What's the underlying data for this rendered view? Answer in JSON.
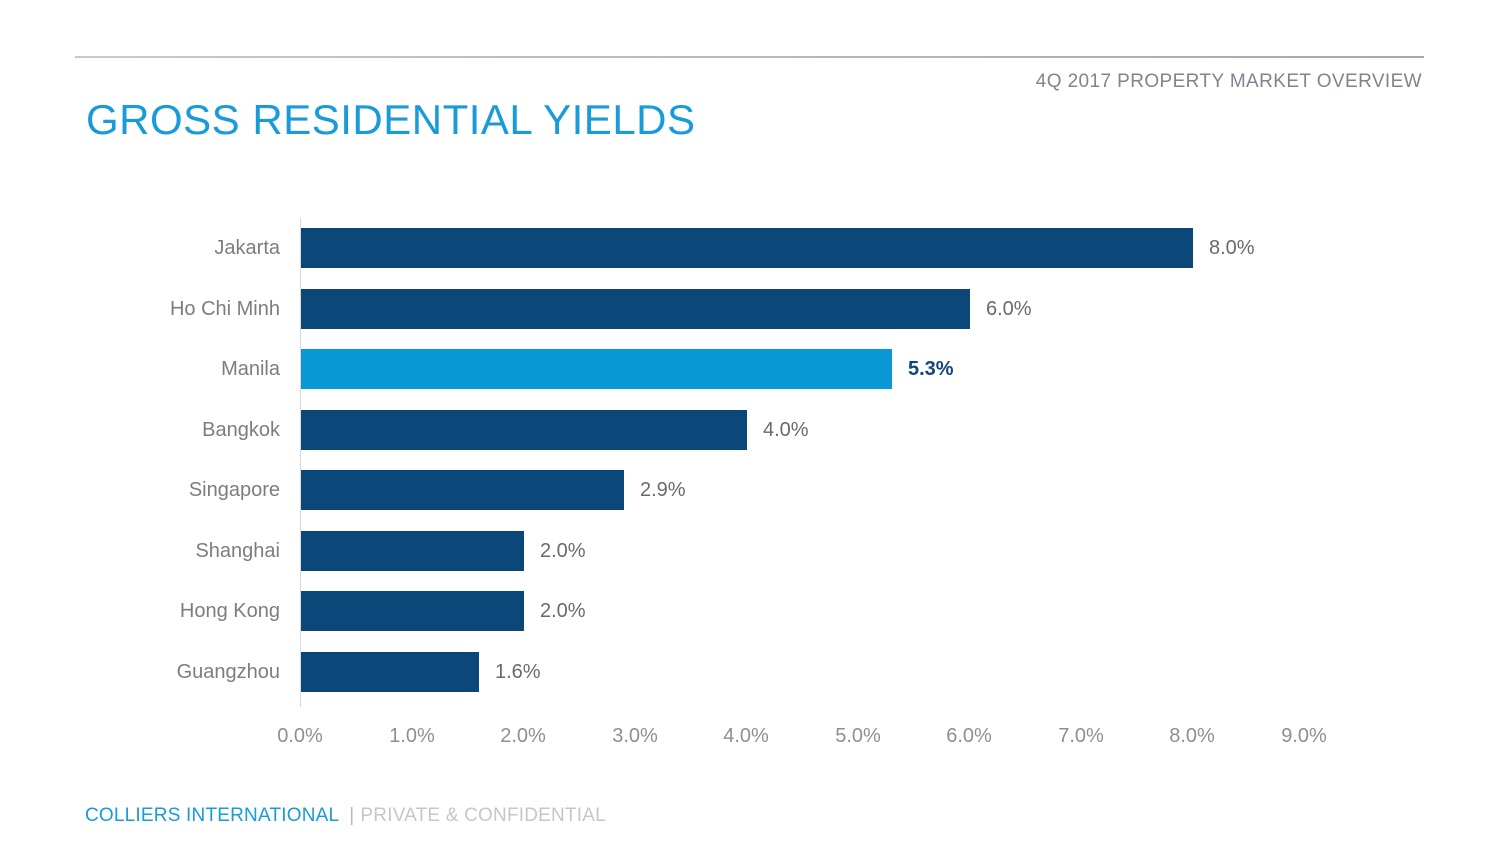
{
  "header": {
    "title": "GROSS RESIDENTIAL YIELDS",
    "subtitle": "4Q 2017 PROPERTY MARKET OVERVIEW"
  },
  "footer": {
    "brand": "COLLIERS INTERNATIONAL",
    "separator": "|",
    "note": "PRIVATE & CONFIDENTIAL"
  },
  "colors": {
    "brand_blue": "#189bd8",
    "bar_navy": "#0b4778",
    "bar_highlight": "#0997d5",
    "highlight_value_text": "#13457a"
  },
  "chart_data": {
    "type": "bar",
    "orientation": "horizontal",
    "title": "GROSS RESIDENTIAL YIELDS",
    "categories": [
      "Jakarta",
      "Ho Chi Minh",
      "Manila",
      "Bangkok",
      "Singapore",
      "Shanghai",
      "Hong Kong",
      "Guangzhou"
    ],
    "values": [
      8.0,
      6.0,
      5.3,
      4.0,
      2.9,
      2.0,
      2.0,
      1.6
    ],
    "value_labels": [
      "8.0%",
      "6.0%",
      "5.3%",
      "4.0%",
      "2.9%",
      "2.0%",
      "2.0%",
      "1.6%"
    ],
    "highlight_index": 2,
    "highlighted_category": "Manila",
    "x_ticks": [
      "0.0%",
      "1.0%",
      "2.0%",
      "3.0%",
      "4.0%",
      "5.0%",
      "6.0%",
      "7.0%",
      "8.0%",
      "9.0%"
    ],
    "xlim": [
      0,
      9
    ],
    "xlabel": "",
    "ylabel": "",
    "grid": false,
    "legend": null
  }
}
